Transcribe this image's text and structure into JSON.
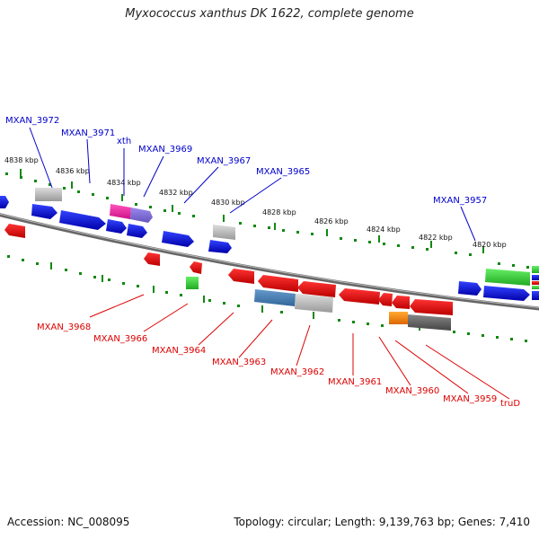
{
  "title": "Myxococcus xanthus DK 1622, complete genome",
  "footer": {
    "accession": "Accession: NC_008095",
    "summary": "Topology: circular; Length: 9,139,763 bp; Genes: 7,410"
  },
  "colors": {
    "forward_label": "#0000cc",
    "reverse_label": "#dd0000",
    "backbone": "#777777",
    "tick": "#118811"
  },
  "scale_labels": [
    "4838 kbp",
    "4836 kbp",
    "4834 kbp",
    "4832 kbp",
    "4830 kbp",
    "4828 kbp",
    "4826 kbp",
    "4824 kbp",
    "4822 kbp",
    "4820 kbp"
  ],
  "forward_genes": [
    "MXAN_3972",
    "MXAN_3971",
    "xth",
    "MXAN_3969",
    "MXAN_3967",
    "MXAN_3965",
    "MXAN_3957"
  ],
  "reverse_genes": [
    "MXAN_3968",
    "MXAN_3966",
    "MXAN_3964",
    "MXAN_3963",
    "MXAN_3962",
    "MXAN_3961",
    "MXAN_3960",
    "MXAN_3959",
    "truD"
  ]
}
